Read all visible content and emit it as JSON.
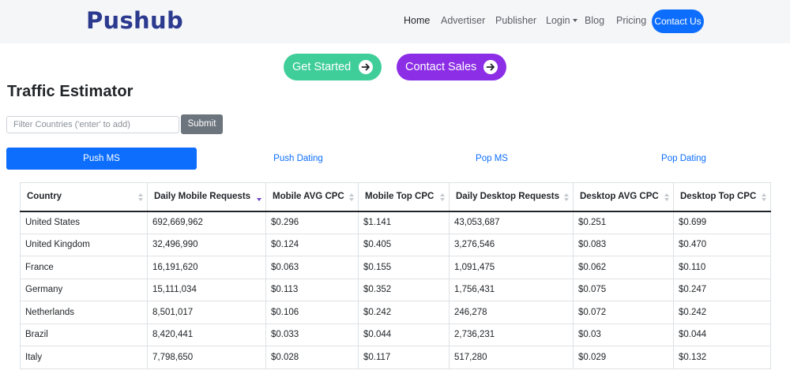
{
  "brand": {
    "logo_text": "Pushub"
  },
  "nav": {
    "items": [
      {
        "label": "Home",
        "active": true
      },
      {
        "label": "Advertiser",
        "active": false
      },
      {
        "label": "Publisher",
        "active": false
      },
      {
        "label": "Login",
        "active": false,
        "dropdown": true
      },
      {
        "label": "Blog",
        "active": false
      },
      {
        "label": "Pricing",
        "active": false
      }
    ],
    "contact_button": "Contact Us"
  },
  "cta": {
    "get_started": "Get Started",
    "contact_sales": "Contact Sales"
  },
  "page_title": "Traffic Estimator",
  "filter": {
    "placeholder": "Filter Countries ('enter' to add)",
    "value": "",
    "submit_label": "Submit"
  },
  "tabs": [
    {
      "label": "Push MS",
      "active": true
    },
    {
      "label": "Push Dating",
      "active": false
    },
    {
      "label": "Pop MS",
      "active": false
    },
    {
      "label": "Pop Dating",
      "active": false
    }
  ],
  "table": {
    "columns": [
      "Country",
      "Daily Mobile Requests",
      "Mobile AVG CPC",
      "Mobile Top CPC",
      "Daily Desktop Requests",
      "Desktop AVG CPC",
      "Desktop Top CPC"
    ],
    "sorted_column": "Daily Mobile Requests",
    "sort_direction": "descending",
    "rows": [
      [
        "United States",
        "692,669,962",
        "$0.296",
        "$1.141",
        "43,053,687",
        "$0.251",
        "$0.699"
      ],
      [
        "United Kingdom",
        "32,496,990",
        "$0.124",
        "$0.405",
        "3,276,546",
        "$0.083",
        "$0.470"
      ],
      [
        "France",
        "16,191,620",
        "$0.063",
        "$0.155",
        "1,091,475",
        "$0.062",
        "$0.110"
      ],
      [
        "Germany",
        "15,111,034",
        "$0.113",
        "$0.352",
        "1,756,431",
        "$0.075",
        "$0.247"
      ],
      [
        "Netherlands",
        "8,501,017",
        "$0.106",
        "$0.242",
        "246,278",
        "$0.072",
        "$0.242"
      ],
      [
        "Brazil",
        "8,420,441",
        "$0.033",
        "$0.044",
        "2,736,231",
        "$0.03",
        "$0.044"
      ],
      [
        "Italy",
        "7,798,650",
        "$0.028",
        "$0.117",
        "517,280",
        "$0.029",
        "$0.132"
      ]
    ]
  },
  "colors": {
    "primary": "#0d6efd",
    "brand": "#2b3a8f",
    "cta_green": "#3fce9a",
    "cta_purple": "#8c2ee6",
    "secondary": "#6c757d",
    "sort_active": "#6f42c1"
  }
}
